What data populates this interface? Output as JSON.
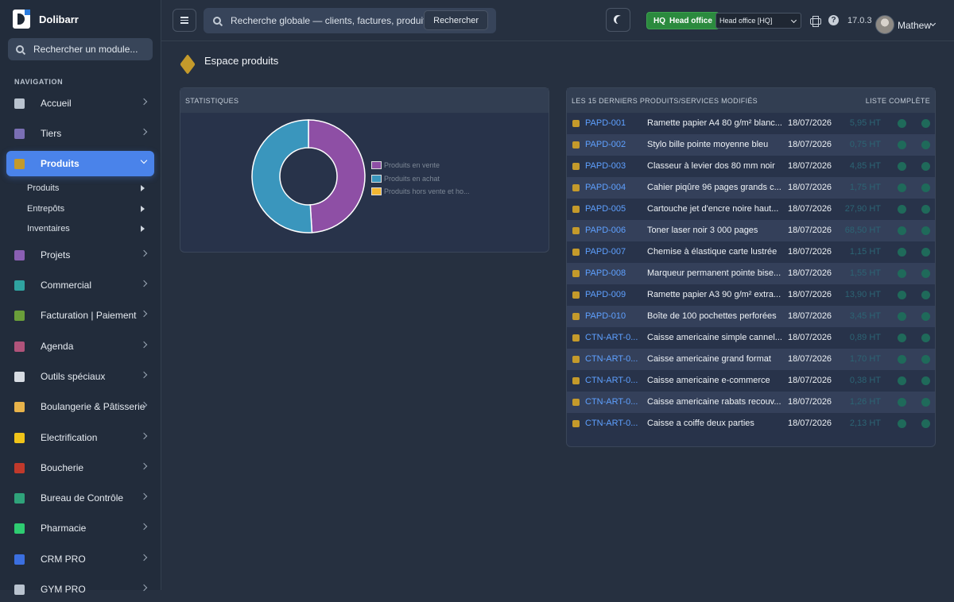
{
  "app": {
    "name": "Dolibarr",
    "version": "17.0.3"
  },
  "sidebar": {
    "search_placeholder": "Rechercher un module...",
    "nav_label": "NAVIGATION",
    "items": [
      {
        "label": "Accueil",
        "icon": "home-icon",
        "color": "#b9c3cf"
      },
      {
        "label": "Tiers",
        "icon": "building-icon",
        "color": "#7a6fb4"
      },
      {
        "label": "Produits",
        "icon": "box-icon",
        "color": "#c49a2b",
        "active": true
      },
      {
        "label": "Projets",
        "icon": "project-icon",
        "color": "#8a5fb3"
      },
      {
        "label": "Commercial",
        "icon": "briefcase-icon",
        "color": "#2fa3a0"
      },
      {
        "label": "Facturation | Paiement",
        "icon": "invoice-icon",
        "color": "#6a9e3a"
      },
      {
        "label": "Agenda",
        "icon": "calendar-icon",
        "color": "#b0537a"
      },
      {
        "label": "Outils spéciaux",
        "icon": "tools-icon",
        "color": "#d7dce2"
      },
      {
        "label": "Boulangerie & Pâtisserie",
        "icon": "bread-icon",
        "color": "#e8b34a"
      },
      {
        "label": "Electrification",
        "icon": "lightning-icon",
        "color": "#f0c419"
      },
      {
        "label": "Boucherie",
        "icon": "meat-icon",
        "color": "#c0392b"
      },
      {
        "label": "Bureau de Contrôle",
        "icon": "shield-icon",
        "color": "#2fa37a"
      },
      {
        "label": "Pharmacie",
        "icon": "cross-icon",
        "color": "#2ecc71"
      },
      {
        "label": "CRM PRO",
        "icon": "funnel-icon",
        "color": "#3b6fe0"
      },
      {
        "label": "GYM PRO",
        "icon": "dumbbell-icon",
        "color": "#b9c3cf"
      }
    ],
    "subitems": [
      "Produits",
      "Entrepôts",
      "Inventaires"
    ]
  },
  "topbar": {
    "search_placeholder": "Recherche globale — clients, factures, produits...",
    "search_button": "Rechercher",
    "badge_code": "HQ",
    "badge_label": "Head office",
    "entity_select": "Head office [HQ]",
    "username": "Mathew"
  },
  "page": {
    "title": "Espace produits"
  },
  "stats": {
    "header": "STATISTIQUES",
    "legend": [
      {
        "label": "Produits en vente",
        "color": "#8e4fa5"
      },
      {
        "label": "Produits en achat",
        "color": "#3a96bd"
      },
      {
        "label": "Produits hors vente et ho...",
        "color": "#f2b632"
      }
    ],
    "chart_data": {
      "type": "pie",
      "donut": true,
      "categories": [
        "Produits en vente",
        "Produits en achat",
        "Produits hors vente et hors achat"
      ],
      "values": [
        49,
        51,
        0
      ],
      "colors": [
        "#8e4fa5",
        "#3a96bd",
        "#f2b632"
      ],
      "legend_position": "right"
    }
  },
  "list": {
    "header": "LES 15 DERNIERS PRODUITS/SERVICES MODIFIÉS",
    "full_list": "LISTE COMPLÈTE",
    "rows": [
      {
        "ref": "PAPD-001",
        "label": "Ramette papier A4 80 g/m² blanc...",
        "date": "18/07/2026",
        "price": "5,95 HT"
      },
      {
        "ref": "PAPD-002",
        "label": "Stylo bille pointe moyenne bleu",
        "date": "18/07/2026",
        "price": "0,75 HT"
      },
      {
        "ref": "PAPD-003",
        "label": "Classeur à levier dos 80 mm noir",
        "date": "18/07/2026",
        "price": "4,85 HT"
      },
      {
        "ref": "PAPD-004",
        "label": "Cahier piqûre 96 pages grands c...",
        "date": "18/07/2026",
        "price": "1,75 HT"
      },
      {
        "ref": "PAPD-005",
        "label": "Cartouche jet d'encre noire haut...",
        "date": "18/07/2026",
        "price": "27,90 HT"
      },
      {
        "ref": "PAPD-006",
        "label": "Toner laser noir 3 000 pages",
        "date": "18/07/2026",
        "price": "68,50 HT"
      },
      {
        "ref": "PAPD-007",
        "label": "Chemise à élastique carte lustrée",
        "date": "18/07/2026",
        "price": "1,15 HT"
      },
      {
        "ref": "PAPD-008",
        "label": "Marqueur permanent pointe bise...",
        "date": "18/07/2026",
        "price": "1,55 HT"
      },
      {
        "ref": "PAPD-009",
        "label": "Ramette papier A3 90 g/m² extra...",
        "date": "18/07/2026",
        "price": "13,90 HT"
      },
      {
        "ref": "PAPD-010",
        "label": "Boîte de 100 pochettes perforées",
        "date": "18/07/2026",
        "price": "3,45 HT"
      },
      {
        "ref": "CTN-ART-0...",
        "label": "Caisse americaine simple cannel...",
        "date": "18/07/2026",
        "price": "0,89 HT"
      },
      {
        "ref": "CTN-ART-0...",
        "label": "Caisse americaine grand format",
        "date": "18/07/2026",
        "price": "1,70 HT"
      },
      {
        "ref": "CTN-ART-0...",
        "label": "Caisse americaine e-commerce",
        "date": "18/07/2026",
        "price": "0,38 HT"
      },
      {
        "ref": "CTN-ART-0...",
        "label": "Caisse americaine rabats recouv...",
        "date": "18/07/2026",
        "price": "1,26 HT"
      },
      {
        "ref": "CTN-ART-0...",
        "label": "Caisse a coiffe deux parties",
        "date": "18/07/2026",
        "price": "2,13 HT"
      }
    ]
  }
}
